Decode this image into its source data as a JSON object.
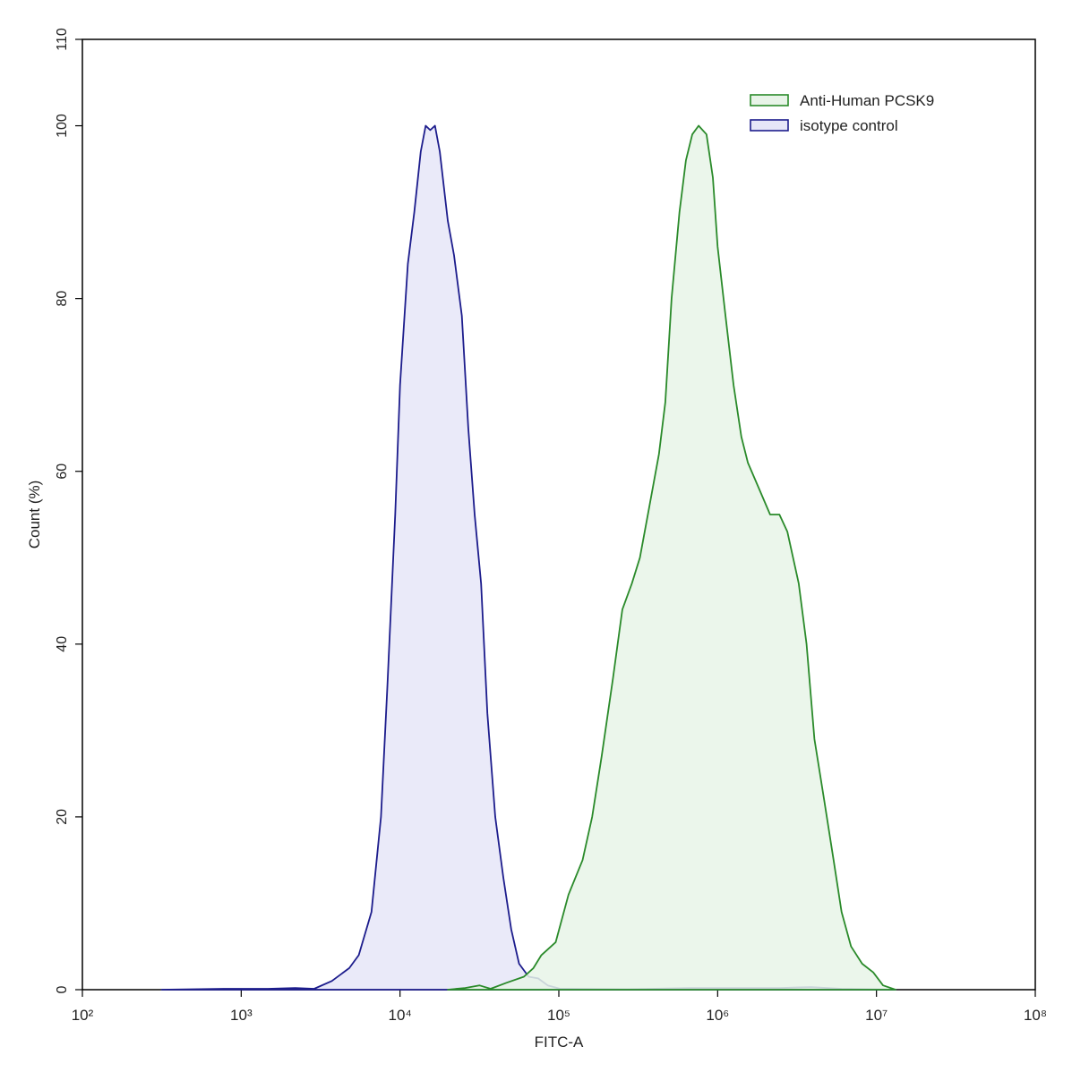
{
  "chart_data": {
    "type": "area",
    "x_label": "FITC-A",
    "y_label": "Count  (%)",
    "log_x": true,
    "xlim": [
      100,
      100000000
    ],
    "ylim": [
      0,
      110
    ],
    "xticks": [
      {
        "value": 100,
        "label": "10²"
      },
      {
        "value": 1000,
        "label": "10³"
      },
      {
        "value": 10000,
        "label": "10⁴"
      },
      {
        "value": 100000,
        "label": "10⁵"
      },
      {
        "value": 1000000,
        "label": "10⁶"
      },
      {
        "value": 10000000,
        "label": "10⁷"
      },
      {
        "value": 100000000,
        "label": "10⁸"
      }
    ],
    "yticks": [
      0,
      20,
      40,
      60,
      80,
      100,
      110
    ],
    "legend": "top-right",
    "series": [
      {
        "name": "Anti-Human PCSK9",
        "color": "#2a8a2a",
        "fill": "#e8f4e8",
        "x": [
          20000,
          25700,
          31600,
          37200,
          46800,
          60300,
          69200,
          77600,
          95500,
          115000,
          141000,
          162000,
          186000,
          219000,
          251000,
          288000,
          324000,
          372000,
          427000,
          468000,
          513000,
          575000,
          631000,
          692000,
          759000,
          851000,
          933000,
          1000000,
          1120000,
          1260000,
          1410000,
          1550000,
          1820000,
          2140000,
          2450000,
          2750000,
          3240000,
          3630000,
          4070000,
          4680000,
          5370000,
          6030000,
          6920000,
          8130000,
          9550000,
          11000000,
          13200000
        ],
        "values": [
          0,
          0.2,
          0.5,
          0.1,
          0.8,
          1.5,
          2.5,
          4,
          5.5,
          11,
          15,
          20,
          27,
          36,
          44,
          47,
          50,
          56,
          62,
          68,
          80,
          90,
          96,
          99,
          100,
          99,
          94,
          86,
          78,
          70,
          64,
          61,
          58,
          55,
          55,
          53,
          47,
          40,
          29,
          22,
          15,
          9,
          5,
          3,
          2,
          0.5,
          0
        ]
      },
      {
        "name": "isotype control",
        "color": "#1c1c8c",
        "fill": "#e6e6f8",
        "x": [
          316,
          776,
          1480,
          2190,
          2880,
          3720,
          4790,
          5500,
          6610,
          7590,
          8320,
          9330,
          10000,
          11200,
          12300,
          13500,
          14500,
          15500,
          16600,
          17800,
          20000,
          21900,
          24500,
          26900,
          29500,
          32400,
          35500,
          39800,
          44700,
          50100,
          56200,
          64600,
          74100,
          85100,
          102000,
          269000,
          661000,
          1450000,
          2450000,
          3890000,
          6030000,
          13200000
        ],
        "values": [
          0,
          0.1,
          0.1,
          0.2,
          0.1,
          1,
          2.5,
          4,
          9,
          20,
          35,
          55,
          70,
          84,
          90,
          97,
          100,
          99.5,
          100,
          97,
          89,
          85,
          78,
          65,
          55,
          47,
          32,
          20,
          13,
          7,
          3,
          1.5,
          1.3,
          0.5,
          0.1,
          0.05,
          0.2,
          0.2,
          0.2,
          0.3,
          0.1,
          0
        ]
      }
    ]
  }
}
